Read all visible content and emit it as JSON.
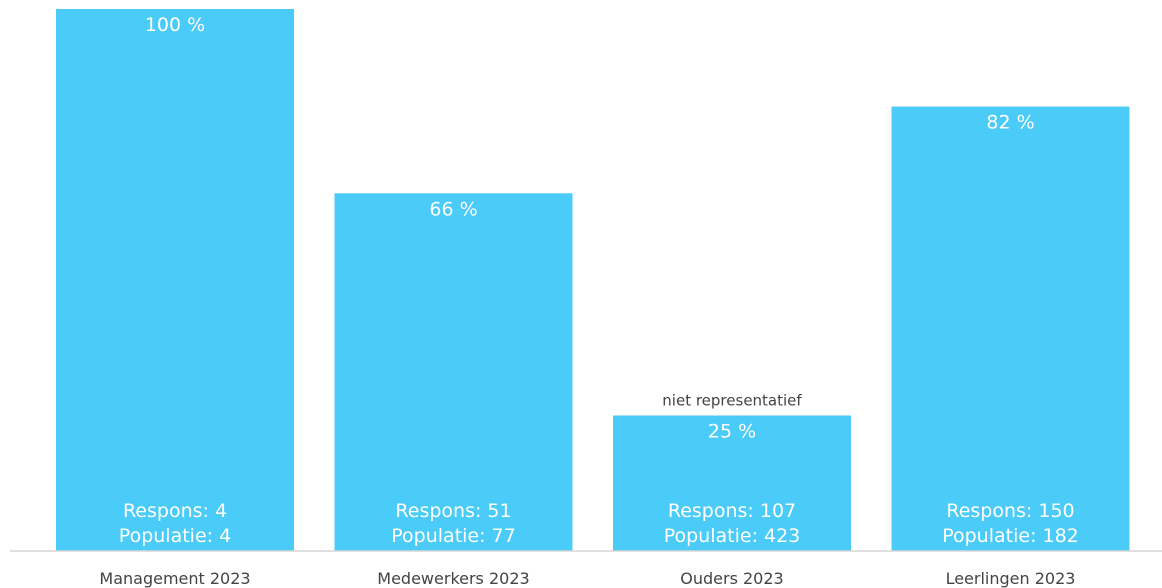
{
  "chart_data": {
    "type": "bar",
    "categories": [
      "Management 2023",
      "Medewerkers 2023",
      "Ouders 2023",
      "Leerlingen 2023"
    ],
    "values": [
      100,
      66,
      25,
      82
    ],
    "value_labels": [
      "100 %",
      "66 %",
      "25 %",
      "82 %"
    ],
    "respons_labels": [
      "Respons: 4",
      "Respons: 51",
      "Respons: 107",
      "Respons: 150"
    ],
    "populatie_labels": [
      "Populatie: 4",
      "Populatie: 77",
      "Populatie: 423",
      "Populatie: 182"
    ],
    "annotations": [
      "",
      "",
      "niet representatief",
      ""
    ],
    "ylim": [
      0,
      100
    ],
    "grid": false,
    "bar_color": "#4bcbf8"
  }
}
